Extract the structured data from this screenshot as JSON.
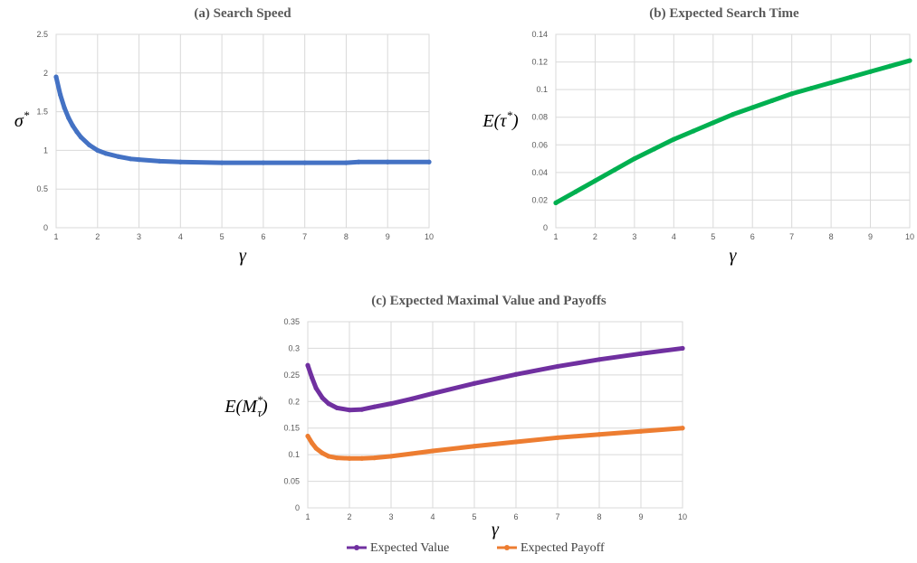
{
  "chart_data": [
    {
      "id": "a",
      "type": "line",
      "title": "(a)  Search Speed",
      "xlabel": "γ",
      "ylabel": "σ*",
      "xlim": [
        1,
        10
      ],
      "ylim": [
        0,
        2.5
      ],
      "xticks": [
        "1",
        "2",
        "3",
        "4",
        "5",
        "6",
        "7",
        "8",
        "9",
        "10"
      ],
      "yticks": [
        "0",
        "0.5",
        "1",
        "1.5",
        "2",
        "2.5"
      ],
      "grid": true,
      "series": [
        {
          "color": "#4472c4",
          "x": [
            1,
            1.1,
            1.2,
            1.3,
            1.4,
            1.5,
            1.6,
            1.8,
            2,
            2.2,
            2.5,
            2.8,
            3,
            3.5,
            4,
            5,
            6,
            7,
            8,
            8.3,
            9,
            10
          ],
          "y": [
            1.95,
            1.72,
            1.55,
            1.42,
            1.32,
            1.24,
            1.17,
            1.07,
            1.0,
            0.96,
            0.92,
            0.89,
            0.88,
            0.86,
            0.85,
            0.84,
            0.84,
            0.84,
            0.84,
            0.85,
            0.85,
            0.85
          ]
        }
      ]
    },
    {
      "id": "b",
      "type": "line",
      "title": "(b) Expected Search Time",
      "xlabel": "γ",
      "ylabel": "E(τ*)",
      "xlim": [
        1,
        10
      ],
      "ylim": [
        0,
        0.14
      ],
      "xticks": [
        "1",
        "2",
        "3",
        "4",
        "5",
        "6",
        "7",
        "8",
        "9",
        "10"
      ],
      "yticks": [
        "0",
        "0.02",
        "0.04",
        "0.06",
        "0.08",
        "0.1",
        "0.12",
        "0.14"
      ],
      "grid": true,
      "series": [
        {
          "color": "#00b050",
          "x": [
            1,
            1.5,
            2,
            2.5,
            3,
            3.5,
            4,
            4.5,
            5,
            5.5,
            6,
            6.5,
            7,
            7.5,
            8,
            8.5,
            9,
            9.5,
            10
          ],
          "y": [
            0.018,
            0.026,
            0.034,
            0.042,
            0.05,
            0.057,
            0.064,
            0.07,
            0.076,
            0.082,
            0.087,
            0.092,
            0.097,
            0.101,
            0.105,
            0.109,
            0.113,
            0.117,
            0.121
          ]
        }
      ]
    },
    {
      "id": "c",
      "type": "line",
      "title": "(c) Expected Maximal Value and Payoffs",
      "xlabel": "γ",
      "ylabel": "E(M*τ)",
      "xlim": [
        1,
        10
      ],
      "ylim": [
        0,
        0.35
      ],
      "xticks": [
        "1",
        "2",
        "3",
        "4",
        "5",
        "6",
        "7",
        "8",
        "9",
        "10"
      ],
      "yticks": [
        "0",
        "0.05",
        "0.1",
        "0.15",
        "0.2",
        "0.25",
        "0.3",
        "0.35"
      ],
      "grid": true,
      "legend_position": "bottom",
      "series": [
        {
          "name": "Expected Value",
          "color": "#7030a0",
          "x": [
            1,
            1.1,
            1.2,
            1.35,
            1.5,
            1.7,
            2,
            2.3,
            2.6,
            3,
            3.5,
            4,
            5,
            6,
            7,
            8,
            9,
            10
          ],
          "y": [
            0.268,
            0.245,
            0.225,
            0.207,
            0.196,
            0.188,
            0.184,
            0.185,
            0.19,
            0.196,
            0.205,
            0.215,
            0.234,
            0.251,
            0.266,
            0.279,
            0.29,
            0.3
          ]
        },
        {
          "name": "Expected Payoff",
          "color": "#ed7d31",
          "x": [
            1,
            1.1,
            1.2,
            1.35,
            1.5,
            1.7,
            2,
            2.3,
            2.6,
            3,
            3.5,
            4,
            5,
            6,
            7,
            8,
            9,
            10
          ],
          "y": [
            0.135,
            0.122,
            0.112,
            0.103,
            0.097,
            0.094,
            0.093,
            0.093,
            0.094,
            0.097,
            0.102,
            0.107,
            0.116,
            0.124,
            0.132,
            0.138,
            0.144,
            0.15
          ]
        }
      ]
    }
  ]
}
